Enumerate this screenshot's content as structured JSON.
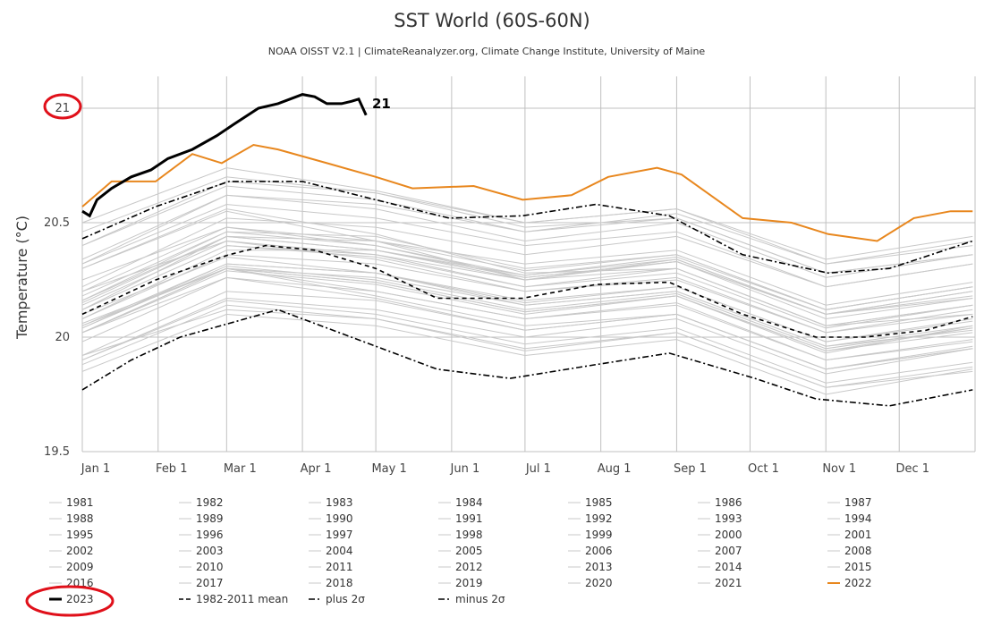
{
  "chart_data": {
    "type": "line",
    "title": "SST World (60S-60N)",
    "subtitle": "NOAA OISST V2.1 | ClimateReanalyzer.org, Climate Change Institute, University of Maine",
    "ylabel": "Temperature (°C)",
    "xlabel": "",
    "ylim": [
      19.5,
      21.1
    ],
    "yticks": [
      19.5,
      20,
      20.5,
      21
    ],
    "ytick_labels": [
      "19.5",
      "20",
      "20.5",
      "21"
    ],
    "x_unit": "day of year",
    "xlim": [
      0,
      365
    ],
    "xticks": [
      0,
      31,
      59,
      90,
      120,
      151,
      181,
      212,
      243,
      273,
      304,
      334
    ],
    "xtick_labels": [
      "Jan 1",
      "Feb 1",
      "Mar 1",
      "Apr 1",
      "May 1",
      "Jun 1",
      "Jul 1",
      "Aug 1",
      "Sep 1",
      "Oct 1",
      "Nov 1",
      "Dec 1"
    ],
    "grid": true,
    "legend_placement": "bottom",
    "colors": {
      "past_years": "#c8c8c8",
      "y2022": "#e8871e",
      "y2023": "#000000",
      "stats": "#000000",
      "annotation": "#e0101a"
    },
    "past_years_x": [
      0,
      59,
      120,
      181,
      243,
      304,
      364
    ],
    "past_years": [
      {
        "name": "1981",
        "values": [
          19.9,
          20.16,
          20.1,
          19.97,
          20.04,
          19.8,
          19.89
        ]
      },
      {
        "name": "1982",
        "values": [
          19.88,
          20.14,
          20.08,
          19.95,
          20.02,
          19.78,
          19.87
        ]
      },
      {
        "name": "1983",
        "values": [
          20.05,
          20.3,
          20.18,
          20.05,
          20.1,
          19.86,
          19.95
        ]
      },
      {
        "name": "1984",
        "values": [
          19.92,
          20.12,
          20.08,
          19.94,
          20.02,
          19.78,
          19.85
        ]
      },
      {
        "name": "1985",
        "values": [
          19.85,
          20.1,
          20.05,
          19.92,
          19.99,
          19.75,
          19.86
        ]
      },
      {
        "name": "1986",
        "values": [
          19.9,
          20.17,
          20.12,
          20.0,
          20.08,
          19.84,
          19.95
        ]
      },
      {
        "name": "1987",
        "values": [
          20.02,
          20.3,
          20.26,
          20.14,
          20.2,
          19.96,
          20.03
        ]
      },
      {
        "name": "1988",
        "values": [
          20.06,
          20.3,
          20.2,
          20.08,
          20.14,
          19.9,
          19.98
        ]
      },
      {
        "name": "1989",
        "values": [
          19.92,
          20.2,
          20.16,
          20.03,
          20.1,
          19.86,
          19.95
        ]
      },
      {
        "name": "1990",
        "values": [
          20.04,
          20.31,
          20.25,
          20.12,
          20.19,
          19.95,
          20.04
        ]
      },
      {
        "name": "1991",
        "values": [
          20.02,
          20.3,
          20.24,
          20.11,
          20.18,
          19.94,
          20.04
        ]
      },
      {
        "name": "1992",
        "values": [
          20.02,
          20.26,
          20.17,
          20.03,
          20.1,
          19.86,
          19.96
        ]
      },
      {
        "name": "1993",
        "values": [
          19.98,
          20.26,
          20.2,
          20.08,
          20.15,
          19.9,
          19.99
        ]
      },
      {
        "name": "1994",
        "values": [
          20.02,
          20.29,
          20.23,
          20.1,
          20.18,
          19.93,
          20.05
        ]
      },
      {
        "name": "1995",
        "values": [
          20.1,
          20.35,
          20.28,
          20.14,
          20.2,
          19.96,
          20.05
        ]
      },
      {
        "name": "1996",
        "values": [
          20.02,
          20.3,
          20.24,
          20.11,
          20.18,
          19.94,
          20.02
        ]
      },
      {
        "name": "1997",
        "values": [
          20.08,
          20.38,
          20.38,
          20.27,
          20.35,
          20.12,
          20.22
        ]
      },
      {
        "name": "1998",
        "values": [
          20.3,
          20.55,
          20.42,
          20.25,
          20.3,
          20.05,
          20.1
        ]
      },
      {
        "name": "1999",
        "values": [
          20.05,
          20.32,
          20.28,
          20.15,
          20.22,
          19.98,
          20.07
        ]
      },
      {
        "name": "2000",
        "values": [
          20.04,
          20.32,
          20.28,
          20.16,
          20.22,
          19.98,
          20.08
        ]
      },
      {
        "name": "2001",
        "values": [
          20.12,
          20.4,
          20.35,
          20.22,
          20.3,
          20.05,
          20.14
        ]
      },
      {
        "name": "2002",
        "values": [
          20.15,
          20.44,
          20.38,
          20.26,
          20.33,
          20.1,
          20.2
        ]
      },
      {
        "name": "2003",
        "values": [
          20.25,
          20.48,
          20.4,
          20.26,
          20.33,
          20.1,
          20.18
        ]
      },
      {
        "name": "2004",
        "values": [
          20.16,
          20.44,
          20.38,
          20.25,
          20.33,
          20.08,
          20.17
        ]
      },
      {
        "name": "2005",
        "values": [
          20.18,
          20.46,
          20.4,
          20.27,
          20.34,
          20.1,
          20.17
        ]
      },
      {
        "name": "2006",
        "values": [
          20.14,
          20.42,
          20.36,
          20.25,
          20.34,
          20.1,
          20.2
        ]
      },
      {
        "name": "2007",
        "values": [
          20.2,
          20.42,
          20.34,
          20.2,
          20.25,
          20.02,
          20.1
        ]
      },
      {
        "name": "2008",
        "values": [
          20.08,
          20.36,
          20.32,
          20.2,
          20.26,
          20.02,
          20.12
        ]
      },
      {
        "name": "2009",
        "values": [
          20.12,
          20.44,
          20.42,
          20.32,
          20.38,
          20.14,
          20.24
        ]
      },
      {
        "name": "2010",
        "values": [
          20.3,
          20.56,
          20.45,
          20.28,
          20.3,
          20.05,
          20.14
        ]
      },
      {
        "name": "2011",
        "values": [
          20.12,
          20.4,
          20.36,
          20.22,
          20.28,
          20.04,
          20.14
        ]
      },
      {
        "name": "2012",
        "values": [
          20.16,
          20.46,
          20.44,
          20.3,
          20.36,
          20.12,
          20.22
        ]
      },
      {
        "name": "2013",
        "values": [
          20.2,
          20.48,
          20.42,
          20.29,
          20.36,
          20.12,
          20.22
        ]
      },
      {
        "name": "2014",
        "values": [
          20.22,
          20.52,
          20.48,
          20.36,
          20.44,
          20.22,
          20.32
        ]
      },
      {
        "name": "2015",
        "values": [
          20.32,
          20.62,
          20.58,
          20.46,
          20.54,
          20.32,
          20.42
        ]
      },
      {
        "name": "2016",
        "values": [
          20.5,
          20.74,
          20.64,
          20.5,
          20.56,
          20.32,
          20.4
        ]
      },
      {
        "name": "2017",
        "values": [
          20.4,
          20.66,
          20.6,
          20.46,
          20.52,
          20.28,
          20.36
        ]
      },
      {
        "name": "2018",
        "values": [
          20.32,
          20.58,
          20.52,
          20.4,
          20.46,
          20.22,
          20.32
        ]
      },
      {
        "name": "2019",
        "values": [
          20.4,
          20.68,
          20.63,
          20.5,
          20.56,
          20.34,
          20.44
        ]
      },
      {
        "name": "2020",
        "values": [
          20.46,
          20.7,
          20.63,
          20.48,
          20.52,
          20.28,
          20.36
        ]
      },
      {
        "name": "2021",
        "values": [
          20.34,
          20.62,
          20.56,
          20.42,
          20.5,
          20.26,
          20.36
        ]
      }
    ],
    "series_2022": {
      "name": "2022",
      "x": [
        0,
        12,
        30,
        45,
        57,
        70,
        80,
        100,
        120,
        135,
        160,
        180,
        200,
        215,
        235,
        245,
        270,
        290,
        305,
        325,
        340,
        355,
        364
      ],
      "values": [
        20.57,
        20.68,
        20.68,
        20.8,
        20.76,
        20.84,
        20.82,
        20.76,
        20.7,
        20.65,
        20.66,
        20.6,
        20.62,
        20.7,
        20.74,
        20.71,
        20.52,
        20.5,
        20.45,
        20.42,
        20.52,
        20.55,
        20.55
      ]
    },
    "series_2023": {
      "name": "2023",
      "x": [
        0,
        3,
        6,
        12,
        20,
        28,
        35,
        45,
        55,
        62,
        72,
        80,
        90,
        95,
        100,
        106,
        110,
        113,
        116
      ],
      "values": [
        20.55,
        20.53,
        20.6,
        20.65,
        20.7,
        20.73,
        20.78,
        20.82,
        20.88,
        20.93,
        21.0,
        21.02,
        21.06,
        21.05,
        21.02,
        21.02,
        21.03,
        21.04,
        20.97
      ]
    },
    "mean": {
      "name": "1982-2011 mean",
      "x": [
        0,
        30,
        60,
        75,
        95,
        120,
        145,
        180,
        210,
        240,
        270,
        300,
        320,
        345,
        364
      ],
      "values": [
        20.1,
        20.25,
        20.36,
        20.4,
        20.38,
        20.3,
        20.17,
        20.17,
        20.23,
        20.24,
        20.1,
        20.0,
        20.0,
        20.03,
        20.09
      ]
    },
    "plus_2sigma": {
      "name": "plus 2σ",
      "x": [
        0,
        30,
        60,
        90,
        120,
        150,
        180,
        210,
        240,
        270,
        305,
        330,
        364
      ],
      "values": [
        20.43,
        20.57,
        20.68,
        20.68,
        20.6,
        20.52,
        20.53,
        20.58,
        20.53,
        20.36,
        20.28,
        20.3,
        20.42
      ]
    },
    "minus_2sigma": {
      "name": "minus 2σ",
      "x": [
        0,
        20,
        40,
        60,
        80,
        110,
        145,
        175,
        210,
        240,
        275,
        300,
        330,
        364
      ],
      "values": [
        19.77,
        19.9,
        20.0,
        20.06,
        20.12,
        20.0,
        19.86,
        19.82,
        19.88,
        19.93,
        19.82,
        19.73,
        19.7,
        19.77
      ]
    },
    "end_label": "21",
    "legend": [
      "1981",
      "1982",
      "1983",
      "1984",
      "1985",
      "1986",
      "1987",
      "1988",
      "1989",
      "1990",
      "1991",
      "1992",
      "1993",
      "1994",
      "1995",
      "1996",
      "1997",
      "1998",
      "1999",
      "2000",
      "2001",
      "2002",
      "2003",
      "2004",
      "2005",
      "2006",
      "2007",
      "2008",
      "2009",
      "2010",
      "2011",
      "2012",
      "2013",
      "2014",
      "2015",
      "2016",
      "2017",
      "2018",
      "2019",
      "2020",
      "2021",
      "2022",
      "2023",
      "1982-2011 mean",
      "plus 2σ",
      "minus 2σ"
    ]
  }
}
